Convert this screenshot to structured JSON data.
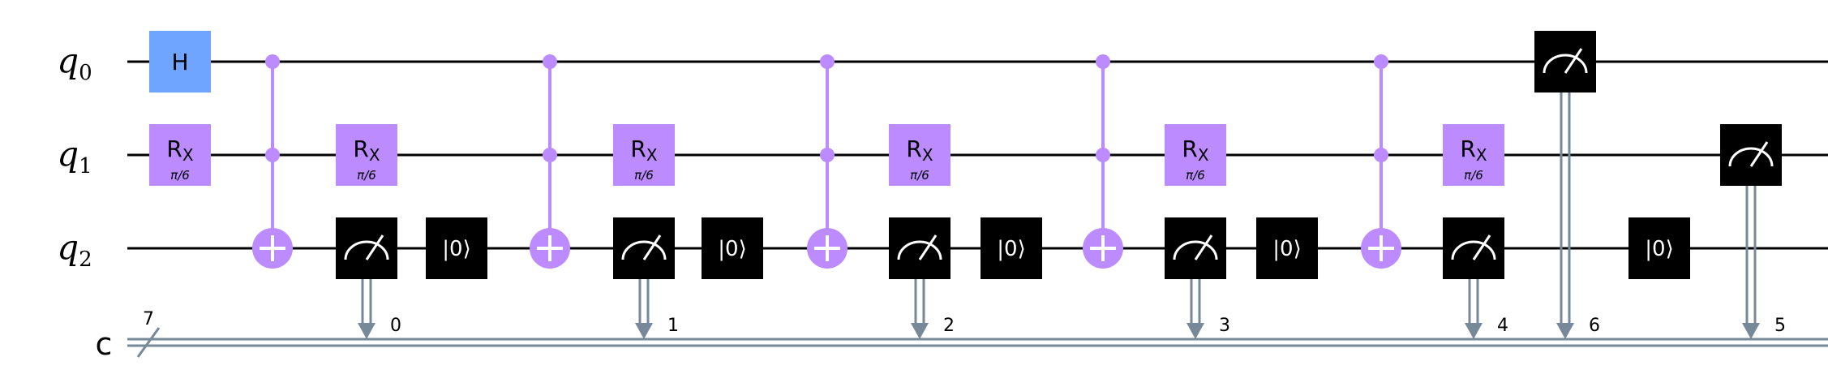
{
  "qubits": [
    {
      "name": "q",
      "sub": "0"
    },
    {
      "name": "q",
      "sub": "1"
    },
    {
      "name": "q",
      "sub": "2"
    }
  ],
  "classical": {
    "name": "c",
    "width_label": "7"
  },
  "colors": {
    "wire": "#000000",
    "classical_wire": "#778899",
    "hadamard": "#6fa4ff",
    "rotation": "#bb8bff",
    "control": "#bb8bff",
    "measure_bg": "#000000",
    "measure_fg": "#ffffff",
    "reset_bg": "#000000",
    "reset_fg": "#ffffff"
  },
  "labels": {
    "hadamard": "H",
    "rx_main": "R",
    "rx_sub": "X",
    "rx_param": "π/6",
    "reset": "|0⟩"
  },
  "ops": [
    {
      "type": "h",
      "qubit": 0,
      "col": 0
    },
    {
      "type": "rx",
      "qubit": 1,
      "col": 0
    },
    {
      "type": "ccx",
      "controls": [
        0,
        1
      ],
      "target": 2,
      "col": 1
    },
    {
      "type": "rx",
      "qubit": 1,
      "col": 2
    },
    {
      "type": "measure",
      "qubit": 2,
      "clbit": "0",
      "col": 2
    },
    {
      "type": "reset",
      "qubit": 2,
      "col": 3
    },
    {
      "type": "ccx",
      "controls": [
        0,
        1
      ],
      "target": 2,
      "col": 4
    },
    {
      "type": "rx",
      "qubit": 1,
      "col": 5
    },
    {
      "type": "measure",
      "qubit": 2,
      "clbit": "1",
      "col": 5
    },
    {
      "type": "reset",
      "qubit": 2,
      "col": 6
    },
    {
      "type": "ccx",
      "controls": [
        0,
        1
      ],
      "target": 2,
      "col": 7
    },
    {
      "type": "rx",
      "qubit": 1,
      "col": 8
    },
    {
      "type": "measure",
      "qubit": 2,
      "clbit": "2",
      "col": 8
    },
    {
      "type": "reset",
      "qubit": 2,
      "col": 9
    },
    {
      "type": "ccx",
      "controls": [
        0,
        1
      ],
      "target": 2,
      "col": 10
    },
    {
      "type": "rx",
      "qubit": 1,
      "col": 11
    },
    {
      "type": "measure",
      "qubit": 2,
      "clbit": "3",
      "col": 11
    },
    {
      "type": "reset",
      "qubit": 2,
      "col": 12
    },
    {
      "type": "ccx",
      "controls": [
        0,
        1
      ],
      "target": 2,
      "col": 13
    },
    {
      "type": "rx",
      "qubit": 1,
      "col": 14
    },
    {
      "type": "measure",
      "qubit": 2,
      "clbit": "4",
      "col": 14
    },
    {
      "type": "measure",
      "qubit": 0,
      "clbit": "6",
      "col": 15
    },
    {
      "type": "reset",
      "qubit": 2,
      "col": 16
    },
    {
      "type": "measure",
      "qubit": 1,
      "clbit": "5",
      "col": 17
    }
  ]
}
